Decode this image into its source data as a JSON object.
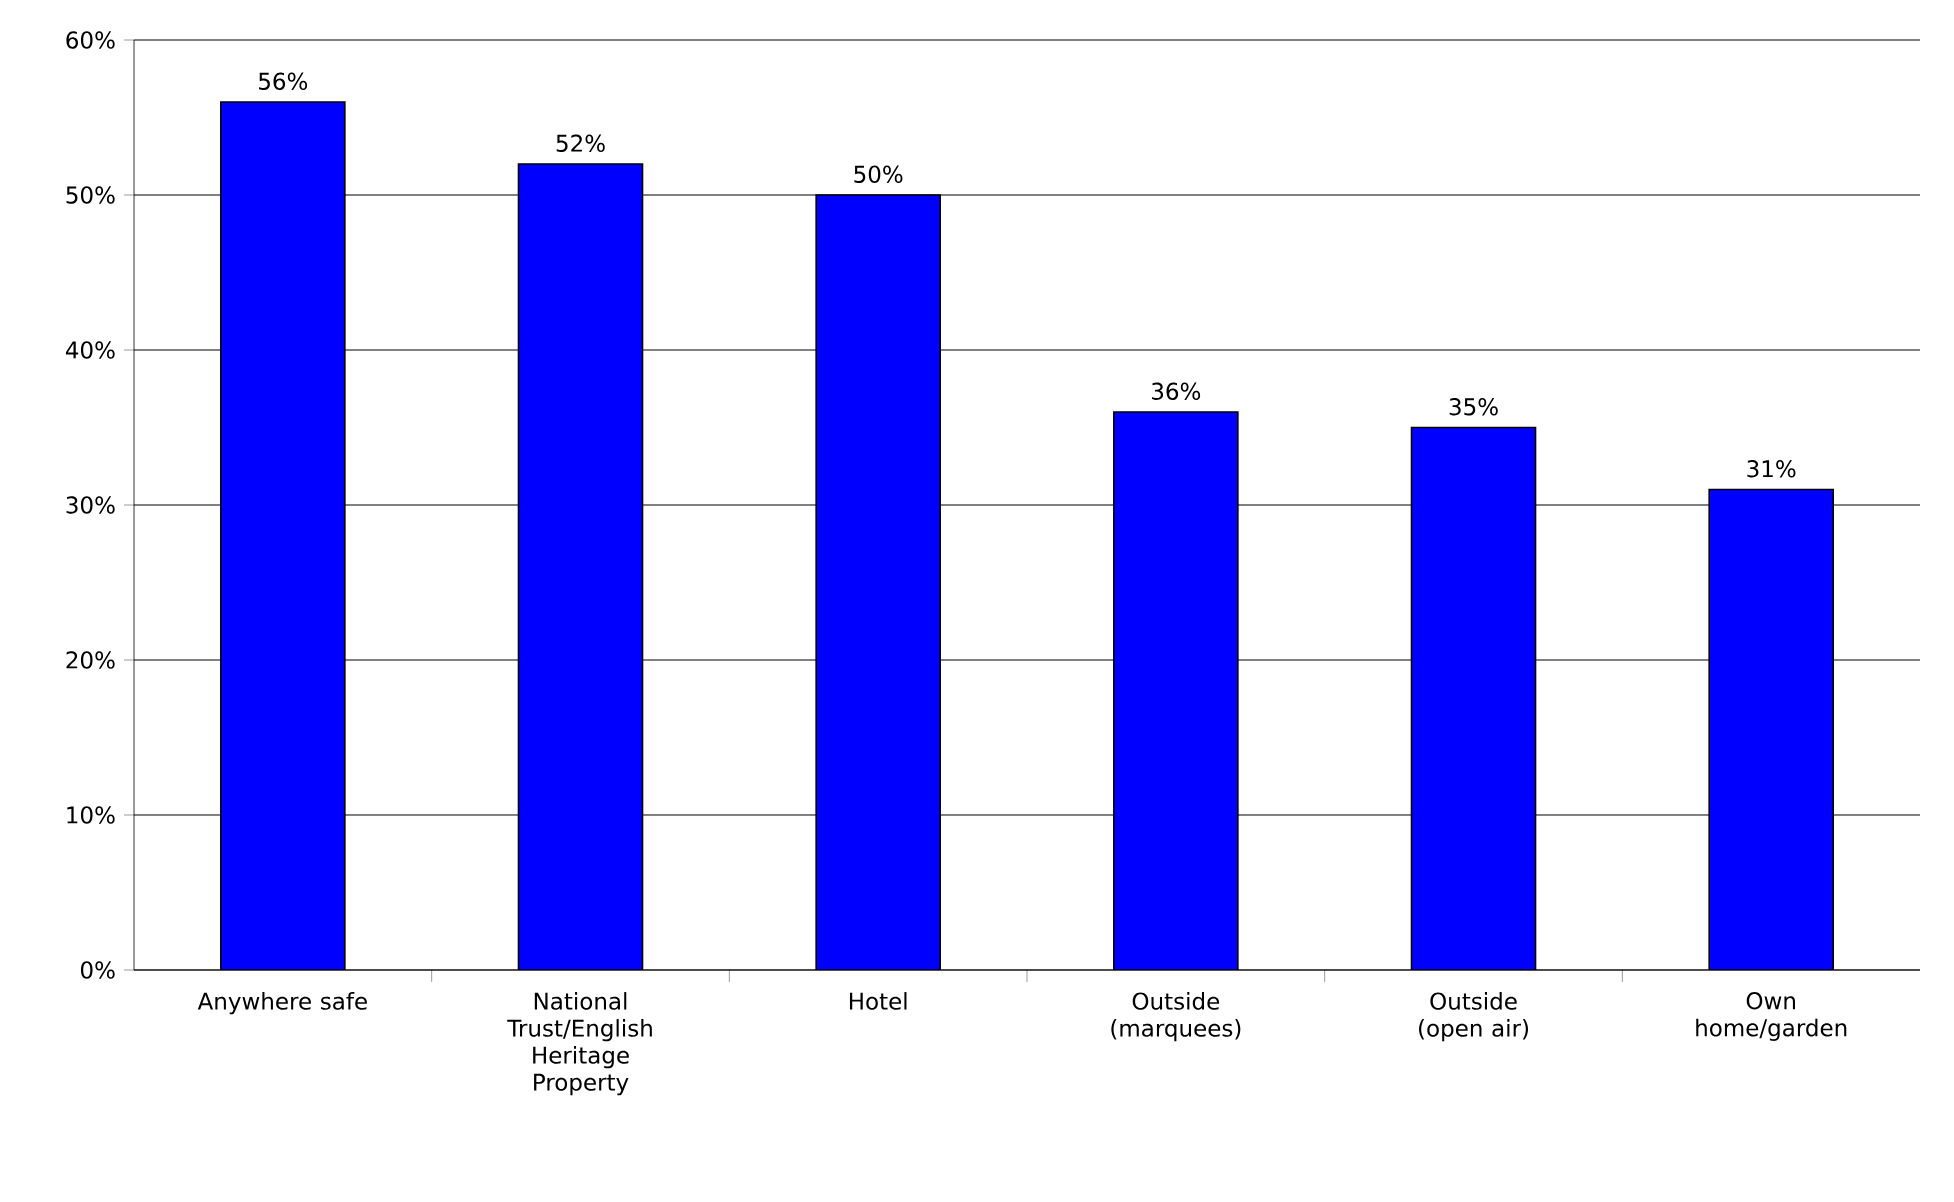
{
  "chart_data": {
    "type": "bar",
    "categories": [
      "Anywhere safe",
      "National Trust/English Heritage Property",
      "Hotel",
      "Outside (marquees)",
      "Outside (open air)",
      "Own home/garden"
    ],
    "values": [
      56,
      52,
      50,
      36,
      35,
      31
    ],
    "value_labels": [
      "56%",
      "52%",
      "50%",
      "36%",
      "35%",
      "31%"
    ],
    "color": "#0000ff",
    "ylim": [
      0,
      60
    ],
    "yticks": [
      {
        "value": 0,
        "label": "0%"
      },
      {
        "value": 10,
        "label": "10%"
      },
      {
        "value": 20,
        "label": "20%"
      },
      {
        "value": 30,
        "label": "30%"
      },
      {
        "value": 40,
        "label": "40%"
      },
      {
        "value": 50,
        "label": "50%"
      },
      {
        "value": 60,
        "label": "60%"
      }
    ],
    "grid": "y"
  }
}
